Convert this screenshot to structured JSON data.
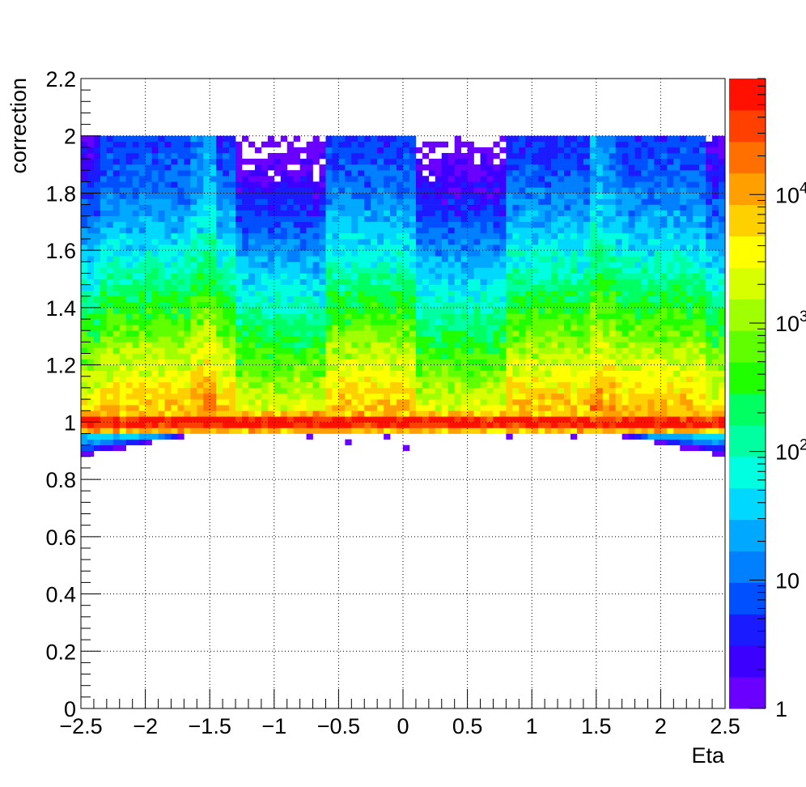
{
  "chart_data": {
    "type": "heatmap",
    "title": "",
    "xlabel": "Eta",
    "ylabel": "correction",
    "xlim": [
      -2.5,
      2.5
    ],
    "ylim": [
      0,
      2.2
    ],
    "x_ticks": [
      "−2.5",
      "−2",
      "−1.5",
      "−1",
      "−0.5",
      "0",
      "0.5",
      "1",
      "1.5",
      "2",
      "2.5"
    ],
    "y_ticks": [
      "0",
      "0.2",
      "0.4",
      "0.6",
      "0.8",
      "1",
      "1.2",
      "1.4",
      "1.6",
      "1.8",
      "2",
      "2.2"
    ],
    "grid": true,
    "z_scale": "log",
    "z_range": [
      1,
      80000
    ],
    "z_ticks": [
      {
        "value": 1,
        "base": "1",
        "exp": ""
      },
      {
        "value": 10,
        "base": "10",
        "exp": ""
      },
      {
        "value": 100,
        "base": "10",
        "exp": "2"
      },
      {
        "value": 1000,
        "base": "10",
        "exp": "3"
      },
      {
        "value": 10000,
        "base": "10",
        "exp": "4"
      }
    ],
    "bins": {
      "x_bins": 100,
      "x_range": [
        -2.5,
        2.5
      ],
      "y_bins": 110,
      "y_range": [
        0,
        2.2
      ]
    },
    "distribution": {
      "peak_correction": 1.0,
      "peak_counts": 80000,
      "populated_correction_range": [
        0.78,
        2.0
      ],
      "low_density_eta_regions": [
        [
          -1.3,
          -0.6
        ],
        [
          0.1,
          0.8
        ]
      ],
      "crack_region_eta": [
        -1.5,
        1.5
      ]
    },
    "colorscale": [
      "#6a00ff",
      "#3c00ff",
      "#1b1bff",
      "#0050ff",
      "#0080ff",
      "#00a8ff",
      "#00d8ff",
      "#00ffe0",
      "#00ffa0",
      "#00ff60",
      "#20ff00",
      "#60ff00",
      "#a0ff00",
      "#d8ff00",
      "#ffff00",
      "#ffd000",
      "#ffa000",
      "#ff7000",
      "#ff4000",
      "#ff1000"
    ]
  }
}
